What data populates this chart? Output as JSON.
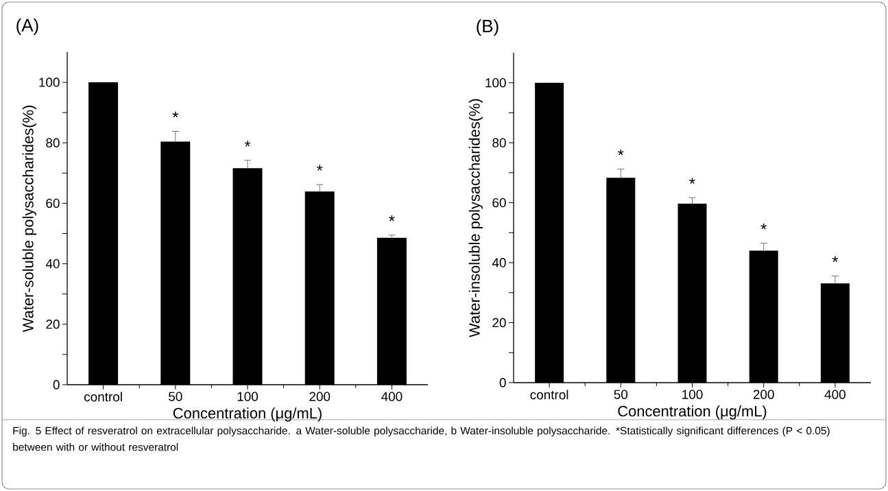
{
  "chart_data": [
    {
      "type": "bar",
      "title": "(A)",
      "xlabel": "Concentration (μg/mL)",
      "ylabel": "Water-soluble polysaccharides(%)",
      "categories": [
        "control",
        "50",
        "100",
        "200",
        "400"
      ],
      "values": [
        100,
        80.4,
        71.6,
        63.9,
        48.6
      ],
      "color": "#000000",
      "errors": [
        null,
        [
          80.4,
          83.8
        ],
        [
          71.6,
          74.2
        ],
        [
          63.9,
          66.2
        ],
        [
          48.6,
          49.5
        ]
      ],
      "ylim": [
        0,
        110
      ],
      "yticks": [
        0,
        {
          "value": 10,
          "label": null
        },
        20,
        {
          "value": 30,
          "label": null
        },
        40,
        {
          "value": 50,
          "label": null
        },
        60,
        {
          "value": 70,
          "label": null
        },
        80,
        {
          "value": 90,
          "label": null
        },
        100
      ],
      "grid": false,
      "annotations": [
        {
          "text": "*",
          "x": "50",
          "y": 83.8
        },
        {
          "text": "*",
          "x": "100",
          "y": 74.2
        },
        {
          "text": "*",
          "x": "200",
          "y": 66.2
        },
        {
          "text": "*",
          "x": "400",
          "y": 49.5
        },
        "Fig. 5 Effect of resveratrol on extracellular polysaccharide. a Water-soluble polysaccharide, b Water-insoluble polysaccharide. *Statistically significant differences (P < 0.05) between with or without resveratrol"
      ]
    },
    {
      "type": "bar",
      "title": "(B)",
      "xlabel": "Concentration (μg/mL)",
      "ylabel": "Water-insoluble polysaccharides(%)",
      "categories": [
        "control",
        "50",
        "100",
        "200",
        "400"
      ],
      "values": [
        100,
        68.3,
        59.7,
        44.0,
        33.1
      ],
      "color": "#000000",
      "errors": [
        null,
        [
          68.3,
          71.2
        ],
        [
          59.7,
          61.7
        ],
        [
          44.0,
          46.5
        ],
        [
          33.1,
          35.6
        ]
      ],
      "ylim": [
        0,
        110
      ],
      "yticks": [
        0,
        {
          "value": 10,
          "label": null
        },
        20,
        {
          "value": 30,
          "label": null
        },
        40,
        {
          "value": 50,
          "label": null
        },
        60,
        {
          "value": 70,
          "label": null
        },
        80,
        {
          "value": 90,
          "label": null
        },
        100
      ],
      "grid": false,
      "annotations": [
        {
          "text": "*",
          "x": "50",
          "y": 71.2
        },
        {
          "text": "*",
          "x": "100",
          "y": 61.7
        },
        {
          "text": "*",
          "x": "200",
          "y": 46.5
        },
        {
          "text": "*",
          "x": "400",
          "y": 35.6
        }
      ]
    }
  ]
}
